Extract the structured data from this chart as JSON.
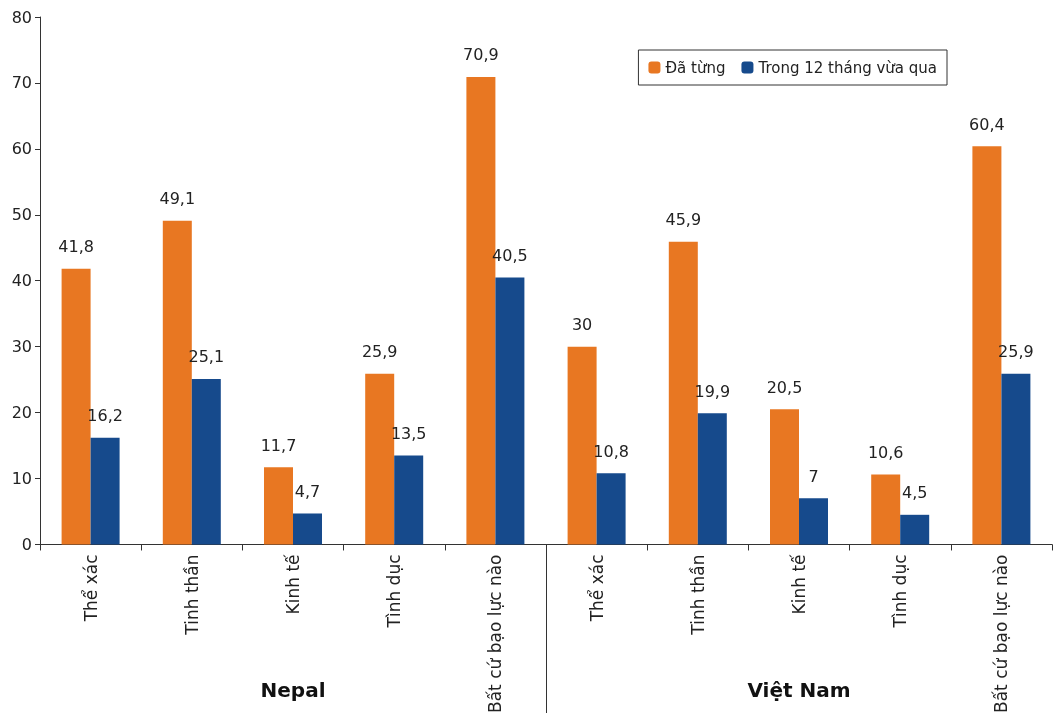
{
  "chart_data": {
    "type": "bar",
    "categories": [
      "Thể xác",
      "Tinh thần",
      "Kinh tế",
      "Tình dục",
      "Bất cứ bạo lực nào",
      "Thể xác",
      "Tinh thần",
      "Kinh tế",
      "Tình dục",
      "Bất cứ bạo lực nào"
    ],
    "series": [
      {
        "name": "Đã từng",
        "color": "#e87722",
        "values": [
          41.8,
          49.1,
          11.7,
          25.9,
          70.9,
          30,
          45.9,
          20.5,
          10.6,
          60.4
        ],
        "value_labels": [
          "41,8",
          "49,1",
          "11,7",
          "25,9",
          "70,9",
          "30",
          "45,9",
          "20,5",
          "10,6",
          "60,4"
        ]
      },
      {
        "name": "Trong 12 tháng vừa qua",
        "color": "#164a8c",
        "values": [
          16.2,
          25.1,
          4.7,
          13.5,
          40.5,
          10.8,
          19.9,
          7,
          4.5,
          25.9
        ],
        "value_labels": [
          "16,2",
          "25,1",
          "4,7",
          "13,5",
          "40,5",
          "10,8",
          "19,9",
          "7",
          "4,5",
          "25,9"
        ]
      }
    ],
    "annotations": [
      "Nepal",
      "Việt Nam"
    ],
    "ylim": [
      0,
      80
    ],
    "yticks": [
      0,
      10,
      20,
      30,
      40,
      50,
      60,
      70,
      80
    ],
    "grid": false,
    "legend": "top right"
  }
}
